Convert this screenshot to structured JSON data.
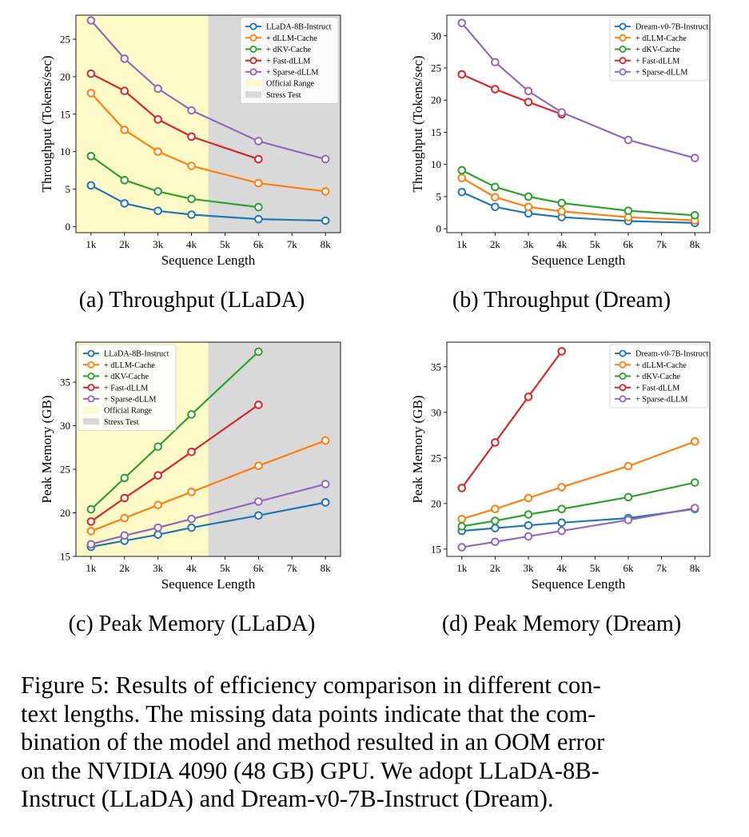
{
  "colors": {
    "blue": "#1f77b4",
    "orange": "#ff7f0e",
    "green": "#2ca02c",
    "red": "#d62728",
    "purple": "#9467bd",
    "official_range": "#fffbc8",
    "stress_test": "#d9d9d9"
  },
  "chart_data": [
    {
      "type": "line",
      "caption": "(a) Throughput (LLaDA)",
      "xlabel": "Sequence Length",
      "ylabel": "Throughput (Tokens/sec)",
      "x_ticks": [
        "1k",
        "2k",
        "3k",
        "4k",
        "5k",
        "6k",
        "7k",
        "8k"
      ],
      "x_range": [
        0.55,
        8.45
      ],
      "ylim": [
        -0.8,
        28.2
      ],
      "y_ticks": [
        0,
        5,
        10,
        15,
        20,
        25
      ],
      "legend_position": "top-right",
      "shaded_regions": [
        {
          "label": "Official Range",
          "from": 0.55,
          "to": 4.5,
          "color": "official_range"
        },
        {
          "label": "Stress Test",
          "from": 4.5,
          "to": 8.45,
          "color": "stress_test"
        }
      ],
      "series": [
        {
          "name": "LLaDA-8B-Instruct",
          "color": "blue",
          "x": [
            1,
            2,
            3,
            4,
            6,
            8
          ],
          "y": [
            5.5,
            3.1,
            2.1,
            1.6,
            1.0,
            0.8
          ]
        },
        {
          "name": "+ dLLM-Cache",
          "color": "orange",
          "x": [
            1,
            2,
            3,
            4,
            6,
            8
          ],
          "y": [
            17.8,
            12.9,
            10.0,
            8.1,
            5.8,
            4.7
          ]
        },
        {
          "name": "+ dKV-Cache",
          "color": "green",
          "x": [
            1,
            2,
            3,
            4,
            6
          ],
          "y": [
            9.4,
            6.2,
            4.7,
            3.7,
            2.6
          ]
        },
        {
          "name": "+ Fast-dLLM",
          "color": "red",
          "x": [
            1,
            2,
            3,
            4,
            6
          ],
          "y": [
            20.4,
            18.1,
            14.3,
            12.0,
            9.0
          ]
        },
        {
          "name": "+ Sparse-dLLM",
          "color": "purple",
          "x": [
            1,
            2,
            3,
            4,
            6,
            8
          ],
          "y": [
            27.5,
            22.4,
            18.4,
            15.5,
            11.4,
            9.0
          ]
        }
      ]
    },
    {
      "type": "line",
      "caption": "(b) Throughput (Dream)",
      "xlabel": "Sequence Length",
      "ylabel": "Throughput (Tokens/sec)",
      "x_ticks": [
        "1k",
        "2k",
        "3k",
        "4k",
        "5k",
        "6k",
        "7k",
        "8k"
      ],
      "x_range": [
        0.55,
        8.45
      ],
      "ylim": [
        -0.6,
        33.2
      ],
      "y_ticks": [
        0,
        5,
        10,
        15,
        20,
        25,
        30
      ],
      "legend_position": "top-right",
      "shaded_regions": [],
      "series": [
        {
          "name": "Dream-v0-7B-Instruct",
          "color": "blue",
          "x": [
            1,
            2,
            3,
            4,
            6,
            8
          ],
          "y": [
            5.7,
            3.4,
            2.4,
            1.8,
            1.2,
            0.9
          ]
        },
        {
          "name": "+ dLLM-Cache",
          "color": "orange",
          "x": [
            1,
            2,
            3,
            4,
            6,
            8
          ],
          "y": [
            7.9,
            4.9,
            3.4,
            2.7,
            1.8,
            1.3
          ]
        },
        {
          "name": "+ dKV-Cache",
          "color": "green",
          "x": [
            1,
            2,
            3,
            4,
            6,
            8
          ],
          "y": [
            9.1,
            6.5,
            5.0,
            4.0,
            2.8,
            2.1
          ]
        },
        {
          "name": "+ Fast-dLLM",
          "color": "red",
          "x": [
            1,
            2,
            3,
            4
          ],
          "y": [
            24.0,
            21.7,
            19.7,
            17.8
          ]
        },
        {
          "name": "+ Sparse-dLLM",
          "color": "purple",
          "x": [
            1,
            2,
            3,
            4,
            6,
            8
          ],
          "y": [
            32.0,
            25.9,
            21.4,
            18.1,
            13.8,
            11.0
          ]
        }
      ]
    },
    {
      "type": "line",
      "caption": "(c) Peak Memory (LLaDA)",
      "xlabel": "Sequence Length",
      "ylabel": "Peak Memory (GB)",
      "x_ticks": [
        "1k",
        "2k",
        "3k",
        "4k",
        "5k",
        "6k",
        "7k",
        "8k"
      ],
      "x_range": [
        0.55,
        8.45
      ],
      "ylim": [
        15.0,
        39.6
      ],
      "y_ticks": [
        15,
        20,
        25,
        30,
        35
      ],
      "legend_position": "top-left",
      "shaded_regions": [
        {
          "label": "Official Range",
          "from": 0.55,
          "to": 4.5,
          "color": "official_range"
        },
        {
          "label": "Stress Test",
          "from": 4.5,
          "to": 8.45,
          "color": "stress_test"
        }
      ],
      "series": [
        {
          "name": "LLaDA-8B-Instruct",
          "color": "blue",
          "x": [
            1,
            2,
            3,
            4,
            6,
            8
          ],
          "y": [
            16.1,
            16.8,
            17.5,
            18.3,
            19.7,
            21.2
          ]
        },
        {
          "name": "+ dLLM-Cache",
          "color": "orange",
          "x": [
            1,
            2,
            3,
            4,
            6,
            8
          ],
          "y": [
            17.9,
            19.4,
            20.9,
            22.4,
            25.4,
            28.3
          ]
        },
        {
          "name": "+ dKV-Cache",
          "color": "green",
          "x": [
            1,
            2,
            3,
            4,
            6
          ],
          "y": [
            20.4,
            24.0,
            27.6,
            31.3,
            38.5
          ]
        },
        {
          "name": "+ Fast-dLLM",
          "color": "red",
          "x": [
            1,
            2,
            3,
            4,
            6
          ],
          "y": [
            19.0,
            21.7,
            24.3,
            27.0,
            32.4
          ]
        },
        {
          "name": "+ Sparse-dLLM",
          "color": "purple",
          "x": [
            1,
            2,
            3,
            4,
            6,
            8
          ],
          "y": [
            16.4,
            17.4,
            18.3,
            19.3,
            21.3,
            23.3
          ]
        }
      ]
    },
    {
      "type": "line",
      "caption": "(d) Peak Memory (Dream)",
      "xlabel": "Sequence Length",
      "ylabel": "Peak Memory (GB)",
      "x_ticks": [
        "1k",
        "2k",
        "3k",
        "4k",
        "5k",
        "6k",
        "7k",
        "8k"
      ],
      "x_range": [
        0.55,
        8.45
      ],
      "ylim": [
        14.2,
        37.7
      ],
      "y_ticks": [
        15,
        20,
        25,
        30,
        35
      ],
      "legend_position": "top-right",
      "shaded_regions": [],
      "series": [
        {
          "name": "Dream-v0-7B-Instruct",
          "color": "blue",
          "x": [
            1,
            2,
            3,
            4,
            6,
            8
          ],
          "y": [
            17.0,
            17.3,
            17.6,
            17.9,
            18.4,
            19.4
          ]
        },
        {
          "name": "+ dLLM-Cache",
          "color": "orange",
          "x": [
            1,
            2,
            3,
            4,
            6,
            8
          ],
          "y": [
            18.3,
            19.4,
            20.6,
            21.8,
            24.1,
            26.8
          ]
        },
        {
          "name": "+ dKV-Cache",
          "color": "green",
          "x": [
            1,
            2,
            3,
            4,
            6,
            8
          ],
          "y": [
            17.5,
            18.1,
            18.8,
            19.4,
            20.7,
            22.3
          ]
        },
        {
          "name": "+ Fast-dLLM",
          "color": "red",
          "x": [
            1,
            2,
            3,
            4
          ],
          "y": [
            21.7,
            26.7,
            31.7,
            36.7
          ]
        },
        {
          "name": "+ Sparse-dLLM",
          "color": "purple",
          "x": [
            1,
            2,
            3,
            4,
            6,
            8
          ],
          "y": [
            15.2,
            15.8,
            16.4,
            17.0,
            18.2,
            19.5
          ]
        }
      ]
    }
  ],
  "figure_caption_lines": [
    "Figure 5: Results of efficiency comparison in different con-",
    "text lengths. The missing data points indicate that the com-",
    "bination of the model and method resulted in an OOM error",
    "on the NVIDIA 4090 (48 GB) GPU. We adopt LLaDA-8B-",
    "Instruct (LLaDA) and Dream-v0-7B-Instruct (Dream)."
  ]
}
